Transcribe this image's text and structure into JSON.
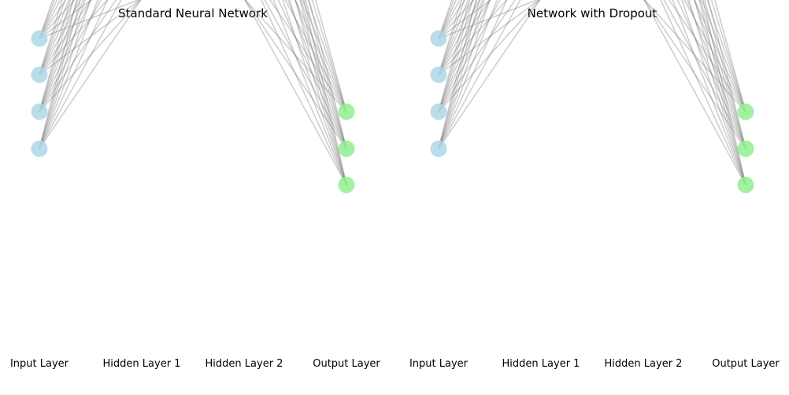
{
  "panels": [
    {
      "title": "Standard Neural Network",
      "layer_labels": [
        "Input Layer",
        "Hidden Layer 1",
        "Hidden Layer 2",
        "Output Layer"
      ]
    },
    {
      "title": "Network with Dropout",
      "layer_labels": [
        "Input Layer",
        "Hidden Layer 1",
        "Hidden Layer 2",
        "Output Layer"
      ]
    }
  ],
  "colors": {
    "input_node": "#add8e6",
    "output_node": "#90ee90",
    "connection": "#808080",
    "text": "#000000",
    "background": "#ffffff"
  }
}
